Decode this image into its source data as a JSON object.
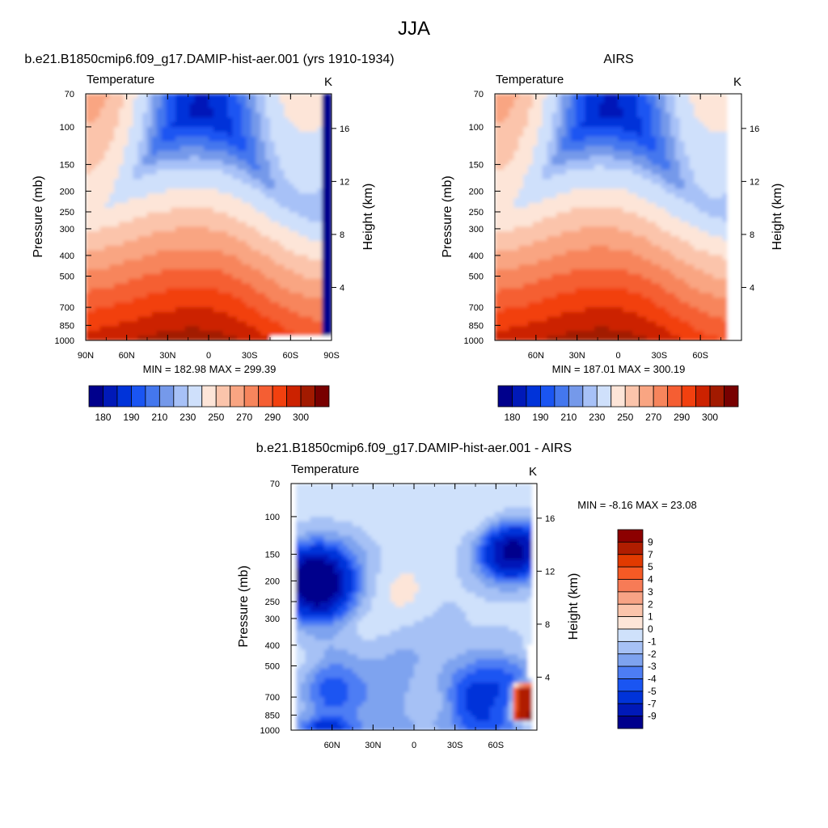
{
  "page": {
    "title": "JJA"
  },
  "palettes": {
    "abs": [
      "#00008c",
      "#0019b8",
      "#0033d9",
      "#1a55f2",
      "#4477ee",
      "#7599ea",
      "#a7c1f7",
      "#cfe0fb",
      "#fde5d8",
      "#fbc4ab",
      "#f9a582",
      "#f7855c",
      "#f55e33",
      "#f2400f",
      "#cc2200",
      "#a21a00",
      "#780000"
    ],
    "diff": [
      "#00008c",
      "#0019b8",
      "#0033d9",
      "#1a55f2",
      "#4d7df4",
      "#7ea3ef",
      "#a6c1f5",
      "#cfe1fb",
      "#fde5d8",
      "#fbc4ab",
      "#f7a385",
      "#f77b56",
      "#f55a25",
      "#e13a00",
      "#b01d00",
      "#8c0000"
    ]
  },
  "chart_data": [
    {
      "id": "model",
      "type": "heatmap",
      "header": "b.e21.B1850cmip6.f09_g17.DAMIP-hist-aer.001 (yrs 1910-1934)",
      "variable": "Temperature",
      "units": "K",
      "ylabel": "Pressure (mb)",
      "y2label": "Height (km)",
      "x_ticks": [
        "90N",
        "60N",
        "30N",
        "0",
        "30S",
        "60S",
        "90S"
      ],
      "y_ticks": [
        "70",
        "100",
        "150",
        "200",
        "250",
        "300",
        "400",
        "500",
        "700",
        "850",
        "1000"
      ],
      "y2_ticks": [
        "16",
        "12",
        "8",
        "4"
      ],
      "stats_text": "MIN = 182.98  MAX = 299.39",
      "colorbar_ticks": [
        "180",
        "190",
        "210",
        "230",
        "250",
        "270",
        "290",
        "300"
      ],
      "lat_range": [
        90,
        -90
      ],
      "pressure_range": [
        70,
        1000
      ],
      "min": 182.98,
      "max": 299.39
    },
    {
      "id": "obs",
      "type": "heatmap",
      "header": "AIRS",
      "variable": "Temperature",
      "units": "K",
      "ylabel": "Pressure (mb)",
      "y2label": "Height (km)",
      "x_ticks": [
        "60N",
        "30N",
        "0",
        "30S",
        "60S"
      ],
      "y_ticks": [
        "70",
        "100",
        "150",
        "200",
        "250",
        "300",
        "400",
        "500",
        "700",
        "850",
        "1000"
      ],
      "y2_ticks": [
        "16",
        "12",
        "8",
        "4"
      ],
      "stats_text": "MIN = 187.01  MAX = 300.19",
      "colorbar_ticks": [
        "180",
        "190",
        "210",
        "230",
        "250",
        "270",
        "290",
        "300"
      ],
      "lat_range": [
        90,
        -90
      ],
      "pressure_range": [
        70,
        1000
      ],
      "min": 187.01,
      "max": 300.19
    },
    {
      "id": "diff",
      "type": "heatmap",
      "header": "b.e21.B1850cmip6.f09_g17.DAMIP-hist-aer.001 - AIRS",
      "variable": "Temperature",
      "units": "K",
      "ylabel": "Pressure (mb)",
      "y2label": "Height (km)",
      "x_ticks": [
        "60N",
        "30N",
        "0",
        "30S",
        "60S"
      ],
      "y_ticks": [
        "70",
        "100",
        "150",
        "200",
        "250",
        "300",
        "400",
        "500",
        "700",
        "850",
        "1000"
      ],
      "y2_ticks": [
        "16",
        "12",
        "8",
        "4"
      ],
      "stats_text": "MIN =  -8.16  MAX =  23.08",
      "colorbar_ticks": [
        "9",
        "7",
        "5",
        "4",
        "3",
        "2",
        "1",
        "0",
        "-1",
        "-2",
        "-3",
        "-4",
        "-5",
        "-7",
        "-9"
      ],
      "lat_range": [
        90,
        -90
      ],
      "pressure_range": [
        70,
        1000
      ],
      "min": -8.16,
      "max": 23.08
    }
  ]
}
